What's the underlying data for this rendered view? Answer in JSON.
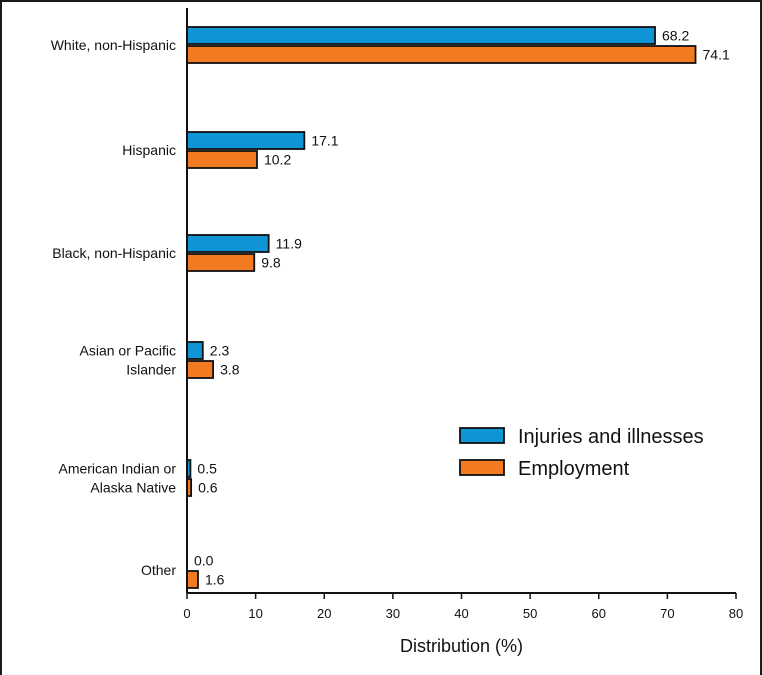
{
  "chart_data": {
    "type": "bar",
    "orientation": "horizontal",
    "categories": [
      [
        "White, non-Hispanic"
      ],
      [
        "Hispanic"
      ],
      [
        "Black, non-Hispanic"
      ],
      [
        "Asian or Pacific",
        "Islander"
      ],
      [
        "American Indian or",
        "Alaska Native"
      ],
      [
        "Other"
      ]
    ],
    "series": [
      {
        "name": "Injuries and illnesses",
        "color": "#0f95d6",
        "values": [
          68.2,
          17.1,
          11.9,
          2.3,
          0.5,
          0.0
        ],
        "labels": [
          "68.2",
          "17.1",
          "11.9",
          "2.3",
          "0.5",
          "0.0"
        ]
      },
      {
        "name": "Employment",
        "color": "#f27b22",
        "values": [
          74.1,
          10.2,
          9.8,
          3.8,
          0.6,
          1.6
        ],
        "labels": [
          "74.1",
          "10.2",
          "9.8",
          "3.8",
          "0.6",
          "1.6"
        ]
      }
    ],
    "xlabel": "Distribution (%)",
    "ylabel": "",
    "xlim": [
      0,
      80
    ],
    "xticks": [
      0,
      10,
      20,
      30,
      40,
      50,
      60,
      70,
      80
    ],
    "grid": false,
    "legend_position": "right"
  }
}
